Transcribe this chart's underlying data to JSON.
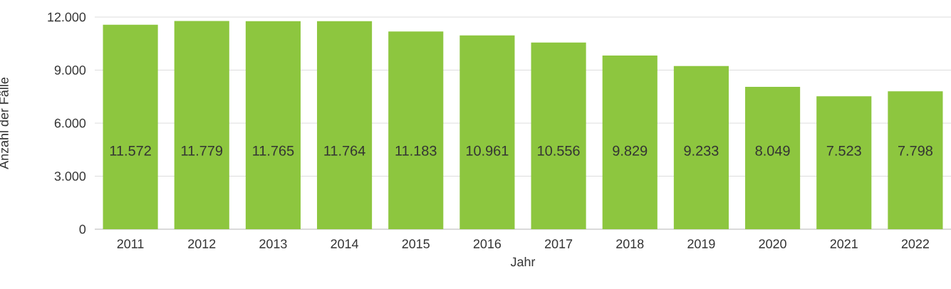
{
  "chart_data": {
    "type": "bar",
    "xlabel": "Jahr",
    "ylabel": "Anzahl der Fälle",
    "categories": [
      "2011",
      "2012",
      "2013",
      "2014",
      "2015",
      "2016",
      "2017",
      "2018",
      "2019",
      "2020",
      "2021",
      "2022"
    ],
    "values": [
      11572,
      11779,
      11765,
      11764,
      11183,
      10961,
      10556,
      9829,
      9233,
      8049,
      7523,
      7798
    ],
    "value_labels": [
      "11.572",
      "11.779",
      "11.765",
      "11.764",
      "11.183",
      "10.961",
      "10.556",
      "9.829",
      "9.233",
      "8.049",
      "7.523",
      "7.798"
    ],
    "color": "#8dc63f",
    "ylim": [
      0,
      12000
    ],
    "yticks": [
      {
        "value": 0,
        "label": "0"
      },
      {
        "value": 3000,
        "label": "3.000"
      },
      {
        "value": 6000,
        "label": "6.000"
      },
      {
        "value": 9000,
        "label": "9.000"
      },
      {
        "value": 12000,
        "label": "12.000"
      }
    ],
    "grid": "y"
  }
}
